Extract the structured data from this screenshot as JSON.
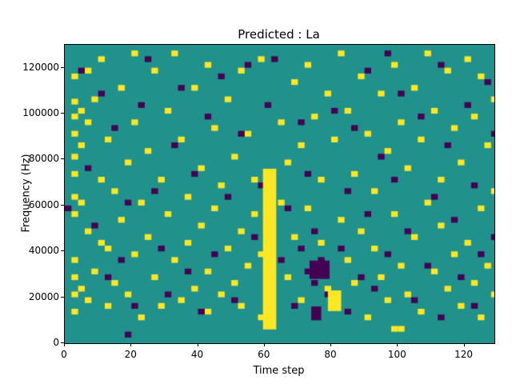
{
  "chart_data": {
    "type": "heatmap",
    "title": "Predicted : La",
    "xlabel": "Time step",
    "ylabel": "Frequency (Hz)",
    "xlim": [
      0,
      129
    ],
    "ylim": [
      0,
      130000
    ],
    "xticks": [
      0,
      20,
      40,
      60,
      80,
      100,
      120
    ],
    "xtick_labels": [
      "0",
      "20",
      "40",
      "60",
      "80",
      "100",
      "120"
    ],
    "yticks": [
      0,
      20000,
      40000,
      60000,
      80000,
      100000,
      120000
    ],
    "ytick_labels": [
      "0",
      "20000",
      "40000",
      "60000",
      "80000",
      "100000",
      "120000"
    ],
    "colors": {
      "background": "#21918c",
      "high": "#fde725",
      "low": "#440154",
      "frame": "#000000"
    },
    "cell": {
      "dx": 2,
      "dy": 2500
    },
    "bands": [
      {
        "color": "high",
        "x0": 59.5,
        "x1": 63.5,
        "y0": 6000,
        "y1": 76000
      },
      {
        "color": "high",
        "x0": 79,
        "x1": 83,
        "y0": 14000,
        "y1": 23000
      },
      {
        "color": "low",
        "x0": 73.5,
        "x1": 79.5,
        "y0": 28000,
        "y1": 36000
      },
      {
        "color": "low",
        "x0": 74,
        "x1": 77,
        "y0": 10000,
        "y1": 16000
      }
    ],
    "yellow_points": [
      [
        2,
        115000
      ],
      [
        2,
        104000
      ],
      [
        2,
        97500
      ],
      [
        2,
        90000
      ],
      [
        2,
        80000
      ],
      [
        2,
        72500
      ],
      [
        2,
        62500
      ],
      [
        2,
        55000
      ],
      [
        2,
        35000
      ],
      [
        2,
        27500
      ],
      [
        2,
        20000
      ],
      [
        2,
        12500
      ],
      [
        4,
        100000
      ],
      [
        4,
        85000
      ],
      [
        4,
        60000
      ],
      [
        4,
        22500
      ],
      [
        6,
        117500
      ],
      [
        6,
        95000
      ],
      [
        6,
        47500
      ],
      [
        6,
        17500
      ],
      [
        8,
        105000
      ],
      [
        8,
        30000
      ],
      [
        10,
        122500
      ],
      [
        10,
        70000
      ],
      [
        10,
        42500
      ],
      [
        12,
        87500
      ],
      [
        12,
        40000
      ],
      [
        12,
        15000
      ],
      [
        14,
        65000
      ],
      [
        14,
        25000
      ],
      [
        16,
        110000
      ],
      [
        16,
        52500
      ],
      [
        18,
        77500
      ],
      [
        18,
        20000
      ],
      [
        20,
        125000
      ],
      [
        20,
        95000
      ],
      [
        20,
        37500
      ],
      [
        22,
        60000
      ],
      [
        22,
        10000
      ],
      [
        24,
        82500
      ],
      [
        24,
        45000
      ],
      [
        26,
        117500
      ],
      [
        26,
        27500
      ],
      [
        28,
        70000
      ],
      [
        28,
        15000
      ],
      [
        30,
        100000
      ],
      [
        30,
        55000
      ],
      [
        32,
        125000
      ],
      [
        32,
        35000
      ],
      [
        34,
        87500
      ],
      [
        34,
        17500
      ],
      [
        36,
        62500
      ],
      [
        36,
        42500
      ],
      [
        38,
        110000
      ],
      [
        38,
        22500
      ],
      [
        40,
        75000
      ],
      [
        40,
        50000
      ],
      [
        42,
        120000
      ],
      [
        42,
        30000
      ],
      [
        42,
        12500
      ],
      [
        44,
        92500
      ],
      [
        44,
        57500
      ],
      [
        46,
        67500
      ],
      [
        46,
        20000
      ],
      [
        48,
        105000
      ],
      [
        48,
        40000
      ],
      [
        50,
        80000
      ],
      [
        50,
        25000
      ],
      [
        52,
        117500
      ],
      [
        52,
        47500
      ],
      [
        52,
        15000
      ],
      [
        54,
        90000
      ],
      [
        54,
        32500
      ],
      [
        56,
        70000
      ],
      [
        56,
        55000
      ],
      [
        58,
        122500
      ],
      [
        58,
        37500
      ],
      [
        58,
        10000
      ],
      [
        64,
        95000
      ],
      [
        64,
        60000
      ],
      [
        66,
        77500
      ],
      [
        66,
        27500
      ],
      [
        68,
        112500
      ],
      [
        68,
        45000
      ],
      [
        70,
        85000
      ],
      [
        70,
        17500
      ],
      [
        72,
        120000
      ],
      [
        72,
        57500
      ],
      [
        74,
        97500
      ],
      [
        74,
        30000
      ],
      [
        74,
        12500
      ],
      [
        76,
        70000
      ],
      [
        76,
        42500
      ],
      [
        78,
        107500
      ],
      [
        78,
        22500
      ],
      [
        80,
        87500
      ],
      [
        82,
        125000
      ],
      [
        82,
        52500
      ],
      [
        84,
        100000
      ],
      [
        84,
        35000
      ],
      [
        86,
        72500
      ],
      [
        86,
        25000
      ],
      [
        88,
        115000
      ],
      [
        88,
        47500
      ],
      [
        90,
        90000
      ],
      [
        90,
        10000
      ],
      [
        92,
        65000
      ],
      [
        92,
        40000
      ],
      [
        94,
        107500
      ],
      [
        94,
        27500
      ],
      [
        96,
        82500
      ],
      [
        96,
        17500
      ],
      [
        98,
        120000
      ],
      [
        98,
        55000
      ],
      [
        98,
        5000
      ],
      [
        100,
        95000
      ],
      [
        100,
        32500
      ],
      [
        100,
        5000
      ],
      [
        102,
        75000
      ],
      [
        102,
        20000
      ],
      [
        104,
        110000
      ],
      [
        104,
        45000
      ],
      [
        106,
        87500
      ],
      [
        106,
        12500
      ],
      [
        108,
        125000
      ],
      [
        108,
        60000
      ],
      [
        110,
        100000
      ],
      [
        110,
        30000
      ],
      [
        112,
        70000
      ],
      [
        112,
        50000
      ],
      [
        114,
        117500
      ],
      [
        114,
        22500
      ],
      [
        116,
        92500
      ],
      [
        116,
        37500
      ],
      [
        118,
        77500
      ],
      [
        118,
        15000
      ],
      [
        120,
        122500
      ],
      [
        120,
        42500
      ],
      [
        122,
        97500
      ],
      [
        122,
        25000
      ],
      [
        124,
        115000
      ],
      [
        124,
        57500
      ],
      [
        124,
        10000
      ],
      [
        126,
        85000
      ],
      [
        126,
        32500
      ],
      [
        128,
        105000
      ],
      [
        128,
        65000
      ],
      [
        128,
        20000
      ]
    ],
    "dark_points": [
      [
        0,
        57500
      ],
      [
        4,
        117500
      ],
      [
        6,
        75000
      ],
      [
        8,
        50000
      ],
      [
        10,
        107500
      ],
      [
        12,
        27500
      ],
      [
        14,
        92500
      ],
      [
        16,
        35000
      ],
      [
        18,
        60000
      ],
      [
        18,
        2500
      ],
      [
        20,
        15000
      ],
      [
        22,
        102500
      ],
      [
        24,
        122500
      ],
      [
        26,
        65000
      ],
      [
        28,
        40000
      ],
      [
        30,
        20000
      ],
      [
        32,
        85000
      ],
      [
        34,
        110000
      ],
      [
        36,
        30000
      ],
      [
        38,
        72500
      ],
      [
        40,
        12500
      ],
      [
        42,
        97500
      ],
      [
        44,
        37500
      ],
      [
        46,
        115000
      ],
      [
        48,
        62500
      ],
      [
        50,
        17500
      ],
      [
        52,
        90000
      ],
      [
        54,
        120000
      ],
      [
        56,
        45000
      ],
      [
        58,
        67500
      ],
      [
        60,
        102500
      ],
      [
        62,
        122500
      ],
      [
        64,
        35000
      ],
      [
        66,
        57500
      ],
      [
        68,
        15000
      ],
      [
        70,
        95000
      ],
      [
        70,
        40000
      ],
      [
        72,
        72500
      ],
      [
        72,
        30000
      ],
      [
        74,
        47500
      ],
      [
        74,
        25000
      ],
      [
        76,
        35000
      ],
      [
        78,
        20000
      ],
      [
        80,
        100000
      ],
      [
        82,
        40000
      ],
      [
        84,
        65000
      ],
      [
        84,
        12500
      ],
      [
        86,
        92500
      ],
      [
        88,
        27500
      ],
      [
        90,
        117500
      ],
      [
        90,
        55000
      ],
      [
        92,
        22500
      ],
      [
        94,
        80000
      ],
      [
        96,
        37500
      ],
      [
        96,
        125000
      ],
      [
        98,
        70000
      ],
      [
        100,
        107500
      ],
      [
        102,
        47500
      ],
      [
        104,
        17500
      ],
      [
        106,
        97500
      ],
      [
        108,
        32500
      ],
      [
        110,
        62500
      ],
      [
        112,
        120000
      ],
      [
        112,
        10000
      ],
      [
        114,
        85000
      ],
      [
        116,
        52500
      ],
      [
        118,
        27500
      ],
      [
        120,
        102500
      ],
      [
        122,
        67500
      ],
      [
        122,
        15000
      ],
      [
        124,
        37500
      ],
      [
        126,
        112500
      ],
      [
        128,
        90000
      ],
      [
        128,
        45000
      ]
    ]
  }
}
